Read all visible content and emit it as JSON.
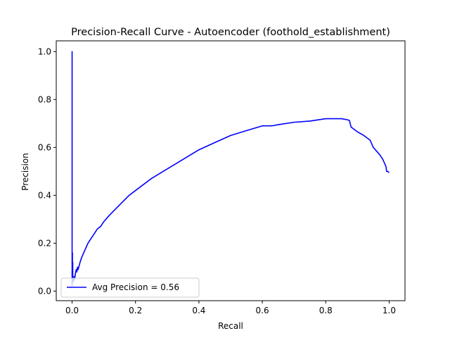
{
  "chart_data": {
    "type": "line",
    "title": "Precision-Recall Curve - Autoencoder (foothold_establishment)",
    "xlabel": "Recall",
    "ylabel": "Precision",
    "xlim": [
      -0.05,
      1.05
    ],
    "ylim": [
      -0.04,
      1.045
    ],
    "xticks": [
      "0.0",
      "0.2",
      "0.4",
      "0.6",
      "0.8",
      "1.0"
    ],
    "yticks": [
      "0.0",
      "0.2",
      "0.4",
      "0.6",
      "0.8",
      "1.0"
    ],
    "grid": false,
    "legend_position": "lower left",
    "series": [
      {
        "name": "Avg Precision = 0.56",
        "color": "#0000ff",
        "x": [
          0.0,
          0.0,
          0.0,
          0.001,
          0.001,
          0.002,
          0.002,
          0.003,
          0.003,
          0.004,
          0.004,
          0.005,
          0.006,
          0.008,
          0.01,
          0.013,
          0.015,
          0.017,
          0.019,
          0.021,
          0.023,
          0.025,
          0.03,
          0.04,
          0.05,
          0.06,
          0.07,
          0.08,
          0.09,
          0.1,
          0.12,
          0.15,
          0.18,
          0.2,
          0.25,
          0.3,
          0.35,
          0.4,
          0.45,
          0.5,
          0.55,
          0.6,
          0.615,
          0.62,
          0.63,
          0.65,
          0.7,
          0.75,
          0.8,
          0.82,
          0.85,
          0.87,
          0.875,
          0.877,
          0.88,
          0.885,
          0.9,
          0.92,
          0.94,
          0.95,
          0.96,
          0.97,
          0.98,
          0.99,
          0.992,
          0.995,
          1.0
        ],
        "y": [
          0.02,
          1.0,
          0.05,
          0.16,
          0.04,
          0.12,
          0.05,
          0.04,
          0.06,
          0.05,
          0.04,
          0.05,
          0.06,
          0.05,
          0.07,
          0.09,
          0.08,
          0.1,
          0.09,
          0.1,
          0.11,
          0.12,
          0.14,
          0.17,
          0.2,
          0.22,
          0.24,
          0.26,
          0.27,
          0.29,
          0.32,
          0.36,
          0.4,
          0.42,
          0.47,
          0.51,
          0.55,
          0.59,
          0.62,
          0.65,
          0.67,
          0.69,
          0.69,
          0.69,
          0.69,
          0.695,
          0.705,
          0.71,
          0.72,
          0.72,
          0.72,
          0.715,
          0.712,
          0.7,
          0.685,
          0.68,
          0.665,
          0.65,
          0.63,
          0.6,
          0.585,
          0.57,
          0.55,
          0.52,
          0.5,
          0.5,
          0.495
        ]
      }
    ]
  }
}
